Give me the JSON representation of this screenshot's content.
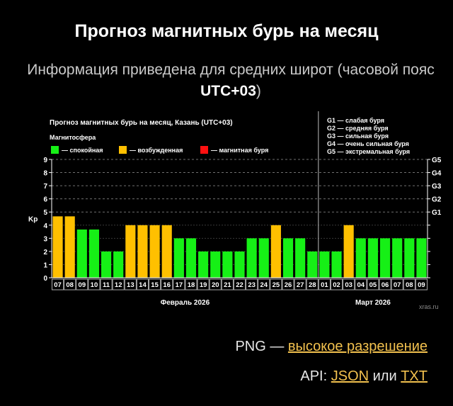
{
  "header": {
    "title": "Прогноз магнитных бурь на месяц",
    "subtitle_text": "Информация приведена для средних широт (часовой пояс ",
    "subtitle_tz": "UTC+03",
    "subtitle_end": ")"
  },
  "links": {
    "png_label": "PNG — ",
    "png_link": "высокое разрешение",
    "api_label": "API: ",
    "json_link": "JSON",
    "or_text": " или ",
    "txt_link": "TXT"
  },
  "colors": {
    "quiet": "#16f016",
    "disturbed": "#ffc000",
    "storm": "#ff1010"
  },
  "chart_data": {
    "type": "bar",
    "title": "Прогноз магнитных бурь на месяц, Казань (UTC+03)",
    "legend_title": "Магнитосфера",
    "legend": [
      {
        "key": "quiet",
        "label": "— спокойная"
      },
      {
        "key": "disturbed",
        "label": "— возбужденная"
      },
      {
        "key": "storm",
        "label": "— магнитная буря"
      }
    ],
    "g_scale": [
      "G1 — слабая буря",
      "G2 — средняя буря",
      "G3 — сильная буря",
      "G4 — очень сильная буря",
      "G5 — экстремальная буря"
    ],
    "ylabel": "Kp",
    "ylim": [
      0,
      9
    ],
    "yticks": [
      0,
      1,
      2,
      3,
      4,
      5,
      6,
      7,
      8,
      9
    ],
    "right_axis_labels": [
      {
        "kp": 5,
        "label": "G1"
      },
      {
        "kp": 6,
        "label": "G2"
      },
      {
        "kp": 7,
        "label": "G3"
      },
      {
        "kp": 8,
        "label": "G4"
      },
      {
        "kp": 9,
        "label": "G5"
      }
    ],
    "categories": [
      "07",
      "08",
      "09",
      "10",
      "11",
      "12",
      "13",
      "14",
      "15",
      "16",
      "17",
      "18",
      "19",
      "20",
      "21",
      "22",
      "23",
      "24",
      "25",
      "26",
      "27",
      "28",
      "01",
      "02",
      "03",
      "04",
      "05",
      "06",
      "07",
      "08",
      "09"
    ],
    "values": [
      4.67,
      4.67,
      3.67,
      3.67,
      2,
      2,
      4,
      4,
      4,
      4,
      3,
      3,
      2,
      2,
      2,
      2,
      3,
      3,
      4,
      3,
      3,
      2,
      2,
      2,
      4,
      3,
      3,
      3,
      3,
      3,
      3
    ],
    "levels": [
      "disturbed",
      "disturbed",
      "quiet",
      "quiet",
      "quiet",
      "quiet",
      "disturbed",
      "disturbed",
      "disturbed",
      "disturbed",
      "quiet",
      "quiet",
      "quiet",
      "quiet",
      "quiet",
      "quiet",
      "quiet",
      "quiet",
      "disturbed",
      "quiet",
      "quiet",
      "quiet",
      "quiet",
      "quiet",
      "disturbed",
      "quiet",
      "quiet",
      "quiet",
      "quiet",
      "quiet",
      "quiet"
    ],
    "months": [
      {
        "label": "Февраль 2026",
        "start": 0,
        "end": 21
      },
      {
        "label": "Март 2026",
        "start": 22,
        "end": 30
      }
    ],
    "watermark": "xras.ru",
    "grid": true
  }
}
